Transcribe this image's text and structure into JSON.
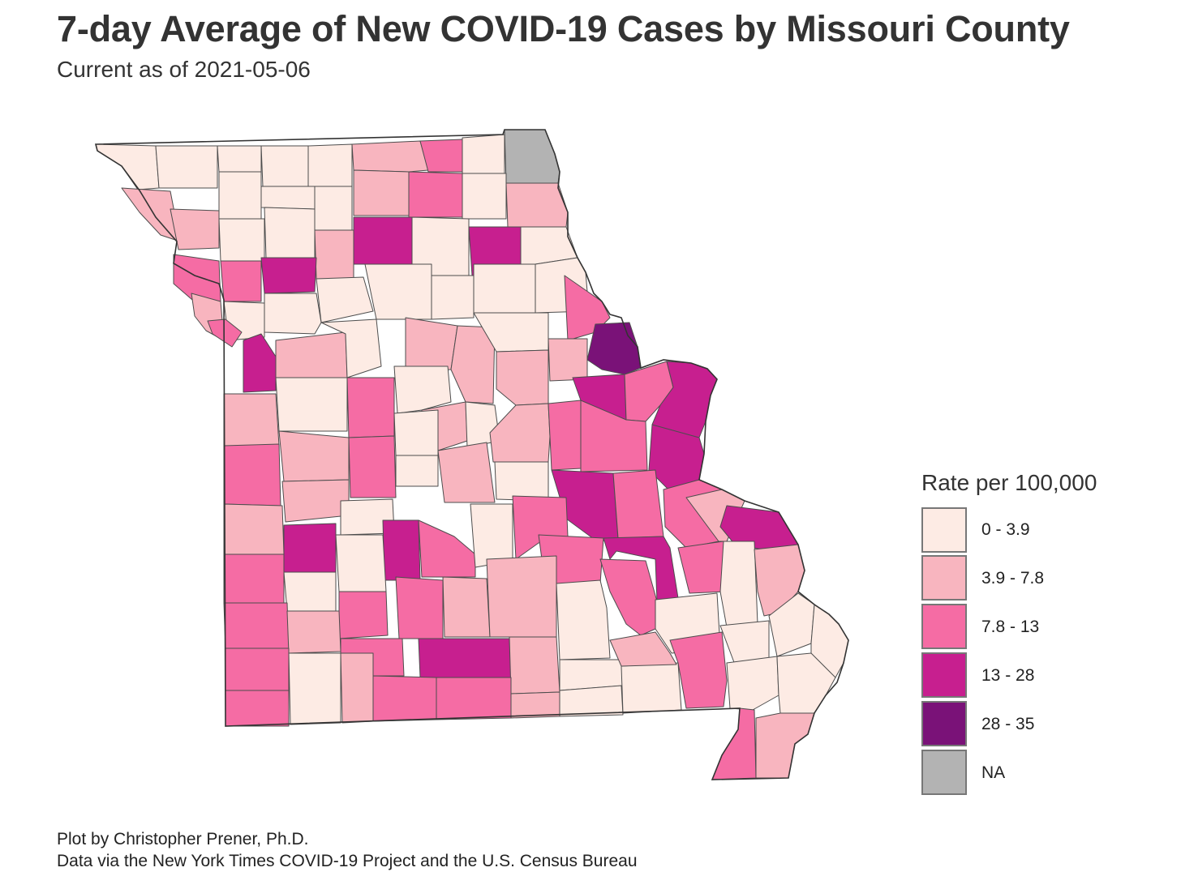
{
  "title": "7-day Average of New COVID-19 Cases by Missouri County",
  "subtitle": "Current as of 2021-05-06",
  "legend": {
    "title": "Rate per 100,000",
    "items": [
      {
        "label": "0 - 3.9",
        "color": "#fdebe4"
      },
      {
        "label": "3.9 - 7.8",
        "color": "#f8b5bf"
      },
      {
        "label": "7.8 - 13",
        "color": "#f56ca4"
      },
      {
        "label": "13 - 28",
        "color": "#c71f8f"
      },
      {
        "label": "28 - 35",
        "color": "#7a1278"
      },
      {
        "label": "NA",
        "color": "#b3b3b3"
      }
    ]
  },
  "caption": {
    "line1": "Plot by Christopher Prener, Ph.D.",
    "line2": "Data via the New York Times COVID-19 Project and the U.S. Census Bureau"
  },
  "colors": {
    "county_border": "#4d4d4d",
    "state_outline": "#333333"
  }
}
